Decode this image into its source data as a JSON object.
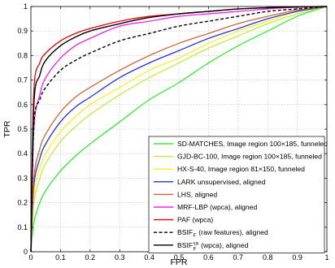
{
  "chart_data": {
    "type": "line",
    "xlabel": "FPR",
    "ylabel": "TPR",
    "xlim": [
      0,
      1
    ],
    "ylim": [
      0,
      1
    ],
    "xticks": [
      "0",
      "0.1",
      "0.2",
      "0.3",
      "0.4",
      "0.5",
      "0.6",
      "0.7",
      "0.8",
      "0.9",
      "1"
    ],
    "yticks": [
      "0",
      "0.1",
      "0.2",
      "0.3",
      "0.4",
      "0.5",
      "0.6",
      "0.7",
      "0.8",
      "0.9",
      "1"
    ],
    "grid": true,
    "legend_position": "bottom-right",
    "series": [
      {
        "name": "SD-MATCHES, Image region 100×185, funneled",
        "color": "#33ee33",
        "dash": "solid",
        "x": [
          0,
          0.01,
          0.03,
          0.05,
          0.1,
          0.15,
          0.2,
          0.3,
          0.4,
          0.5,
          0.6,
          0.7,
          0.8,
          0.9,
          1.0
        ],
        "y": [
          0,
          0.12,
          0.2,
          0.25,
          0.33,
          0.39,
          0.44,
          0.53,
          0.62,
          0.69,
          0.77,
          0.84,
          0.9,
          0.96,
          1.0
        ]
      },
      {
        "name": "GJD-BC-100, Image region 100×185, funneled",
        "color": "#bbee44",
        "dash": "solid",
        "x": [
          0,
          0.01,
          0.03,
          0.05,
          0.1,
          0.15,
          0.2,
          0.3,
          0.4,
          0.5,
          0.6,
          0.7,
          0.8,
          0.9,
          1.0
        ],
        "y": [
          0,
          0.2,
          0.3,
          0.36,
          0.45,
          0.51,
          0.56,
          0.64,
          0.71,
          0.77,
          0.83,
          0.88,
          0.93,
          0.97,
          1.0
        ]
      },
      {
        "name": "HX-S-40, Image region 81×150, funneled",
        "color": "#ffee22",
        "dash": "solid",
        "x": [
          0,
          0.01,
          0.03,
          0.05,
          0.1,
          0.15,
          0.2,
          0.3,
          0.4,
          0.5,
          0.6,
          0.7,
          0.8,
          0.9,
          1.0
        ],
        "y": [
          0,
          0.24,
          0.34,
          0.4,
          0.49,
          0.55,
          0.6,
          0.67,
          0.74,
          0.79,
          0.85,
          0.9,
          0.94,
          0.98,
          1.0
        ]
      },
      {
        "name": "LARK unsupervised, aligned",
        "color": "#2233dd",
        "dash": "solid",
        "x": [
          0,
          0.01,
          0.03,
          0.05,
          0.1,
          0.15,
          0.2,
          0.3,
          0.4,
          0.5,
          0.6,
          0.7,
          0.8,
          0.9,
          1.0
        ],
        "y": [
          0,
          0.27,
          0.38,
          0.44,
          0.53,
          0.59,
          0.63,
          0.71,
          0.77,
          0.82,
          0.87,
          0.91,
          0.95,
          0.98,
          1.0
        ]
      },
      {
        "name": "LHS, aligned",
        "color": "#cc6633",
        "dash": "solid",
        "x": [
          0,
          0.01,
          0.03,
          0.05,
          0.1,
          0.15,
          0.2,
          0.3,
          0.4,
          0.5,
          0.6,
          0.7,
          0.8,
          0.9,
          1.0
        ],
        "y": [
          0,
          0.3,
          0.42,
          0.48,
          0.57,
          0.63,
          0.67,
          0.74,
          0.8,
          0.85,
          0.89,
          0.93,
          0.96,
          0.985,
          1.0
        ]
      },
      {
        "name": "MRF-LBP (wpca), aligned",
        "color": "#ee22ee",
        "dash": "solid",
        "x": [
          0,
          0.01,
          0.03,
          0.05,
          0.1,
          0.15,
          0.2,
          0.3,
          0.4,
          0.5,
          0.6,
          0.7,
          0.8,
          0.9,
          1.0
        ],
        "y": [
          0,
          0.5,
          0.64,
          0.71,
          0.79,
          0.84,
          0.87,
          0.92,
          0.94,
          0.96,
          0.97,
          0.98,
          0.99,
          0.997,
          1.0
        ]
      },
      {
        "name": "PAF (wpca)",
        "color": "#ee0000",
        "dash": "solid",
        "x": [
          0,
          0.01,
          0.03,
          0.05,
          0.1,
          0.15,
          0.2,
          0.3,
          0.4,
          0.5,
          0.6,
          0.7,
          0.8,
          0.9,
          1.0
        ],
        "y": [
          0,
          0.66,
          0.77,
          0.81,
          0.86,
          0.89,
          0.91,
          0.94,
          0.96,
          0.97,
          0.98,
          0.99,
          0.995,
          0.998,
          1.0
        ]
      },
      {
        "name": "BSIF",
        "name_sub": "F",
        "name_suffix": " (raw features), aligned",
        "color": "#000000",
        "dash": "dashed",
        "x": [
          0,
          0.01,
          0.03,
          0.05,
          0.1,
          0.15,
          0.2,
          0.3,
          0.4,
          0.5,
          0.6,
          0.7,
          0.8,
          0.9,
          1.0
        ],
        "y": [
          0,
          0.52,
          0.62,
          0.67,
          0.74,
          0.78,
          0.81,
          0.86,
          0.89,
          0.92,
          0.94,
          0.96,
          0.98,
          0.99,
          1.0
        ]
      },
      {
        "name": "BSIF",
        "name_sub": "F",
        "name_sup": "sa",
        "name_suffix": " (wpca), aligned",
        "color": "#000000",
        "dash": "solid",
        "x": [
          0,
          0.01,
          0.03,
          0.05,
          0.1,
          0.15,
          0.2,
          0.3,
          0.4,
          0.5,
          0.6,
          0.7,
          0.8,
          0.9,
          1.0
        ],
        "y": [
          0,
          0.6,
          0.72,
          0.78,
          0.84,
          0.875,
          0.9,
          0.93,
          0.955,
          0.97,
          0.98,
          0.99,
          0.995,
          0.998,
          1.0
        ]
      }
    ]
  }
}
